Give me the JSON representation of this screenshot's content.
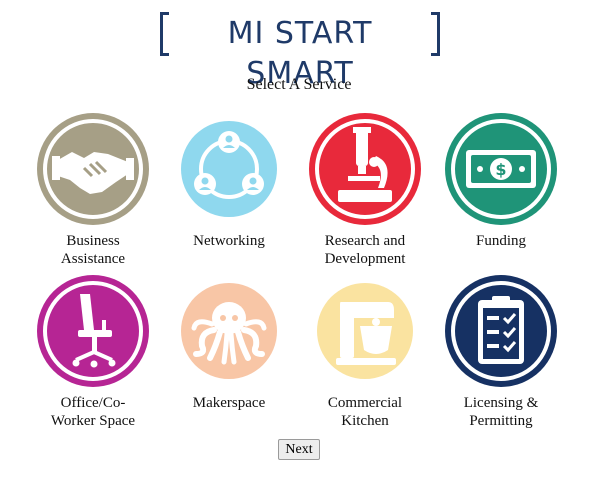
{
  "header": {
    "logo_text": "MI START SMART"
  },
  "prompt": "Select A Service",
  "services": [
    {
      "label_line1": "Business",
      "label_line2": "Assistance",
      "icon": "handshake-icon",
      "color": "#a69f86"
    },
    {
      "label_line1": "Networking",
      "label_line2": "",
      "icon": "network-icon",
      "color": "#8fd8ee"
    },
    {
      "label_line1": "Research and",
      "label_line2": "Development",
      "icon": "microscope-icon",
      "color": "#e8293b"
    },
    {
      "label_line1": "Funding",
      "label_line2": "",
      "icon": "money-icon",
      "color": "#1f9478"
    },
    {
      "label_line1": "Office/Co-",
      "label_line2": "Worker Space",
      "icon": "office-chair-icon",
      "color": "#b62594"
    },
    {
      "label_line1": "Makerspace",
      "label_line2": "",
      "icon": "octopus-icon",
      "color": "#f8c6a6"
    },
    {
      "label_line1": "Commercial",
      "label_line2": "Kitchen",
      "icon": "mixer-icon",
      "color": "#fae3a0"
    },
    {
      "label_line1": "Licensing &",
      "label_line2": "Permitting",
      "icon": "clipboard-icon",
      "color": "#163163"
    }
  ],
  "next_label": "Next"
}
